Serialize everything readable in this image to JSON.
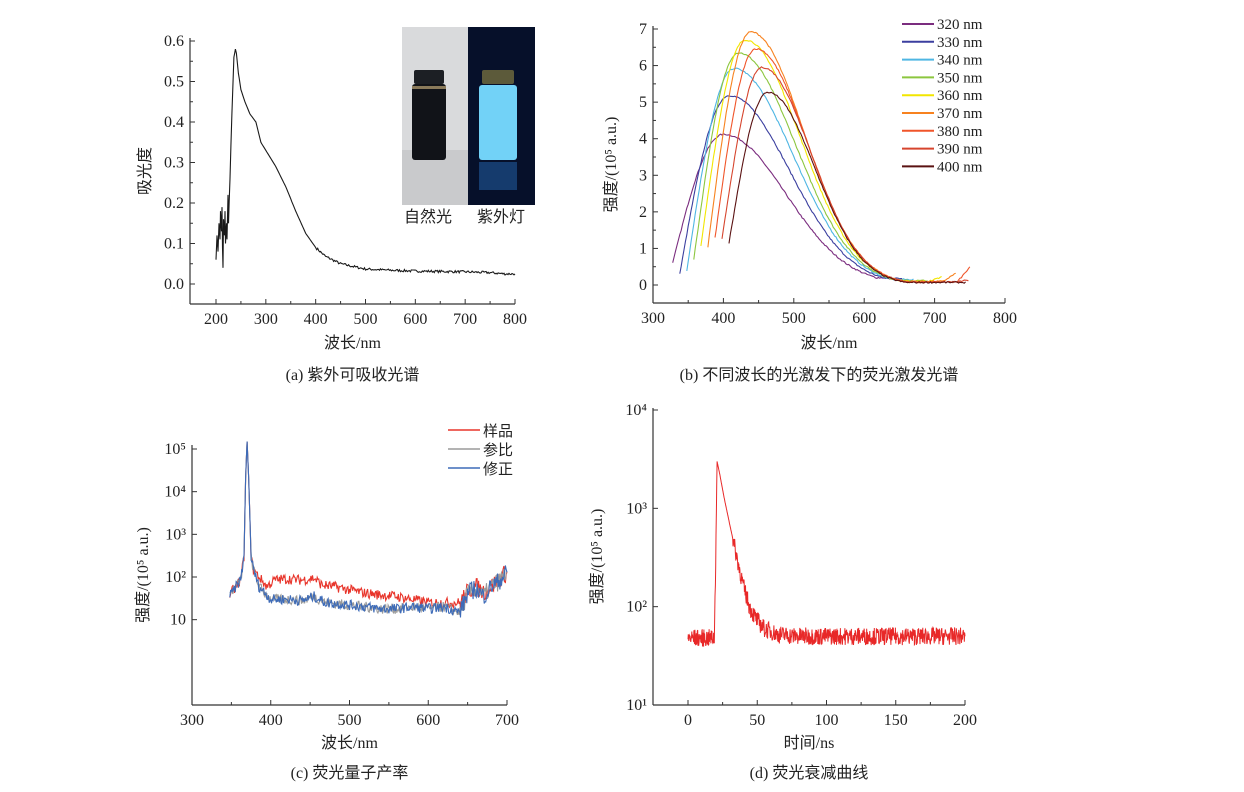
{
  "chart_data": [
    {
      "id": "a",
      "type": "line",
      "caption": "(a) 紫外可吸收光谱",
      "xlabel": "波长/nm",
      "ylabel": "吸光度",
      "xlim": [
        148,
        800
      ],
      "ylim": [
        -0.05,
        0.607
      ],
      "xticks": [
        200,
        300,
        400,
        500,
        600,
        700,
        800
      ],
      "yticks": [
        0.0,
        0.1,
        0.2,
        0.3,
        0.4,
        0.5,
        0.6
      ],
      "ytick_labels": [
        "0.0",
        "0.1",
        "0.2",
        "0.3",
        "0.4",
        "0.5",
        "0.6"
      ],
      "inset_labels": [
        "自然光",
        "紫外灯"
      ],
      "series": [
        {
          "name": "absorbance",
          "color": "#1a1a1a",
          "points": [
            [
              200,
              0.06
            ],
            [
              202,
              0.12
            ],
            [
              204,
              0.08
            ],
            [
              206,
              0.15
            ],
            [
              208,
              0.11
            ],
            [
              209,
              0.18
            ],
            [
              211,
              0.13
            ],
            [
              212,
              0.19
            ],
            [
              213,
              0.09
            ],
            [
              214,
              0.04
            ],
            [
              215,
              0.16
            ],
            [
              217,
              0.12
            ],
            [
              218,
              0.18
            ],
            [
              219,
              0.1
            ],
            [
              221,
              0.15
            ],
            [
              222,
              0.11
            ],
            [
              224,
              0.22
            ],
            [
              225,
              0.15
            ],
            [
              228,
              0.26
            ],
            [
              232,
              0.42
            ],
            [
              236,
              0.56
            ],
            [
              239,
              0.58
            ],
            [
              241,
              0.57
            ],
            [
              245,
              0.52
            ],
            [
              250,
              0.48
            ],
            [
              258,
              0.45
            ],
            [
              268,
              0.42
            ],
            [
              280,
              0.4
            ],
            [
              290,
              0.35
            ],
            [
              300,
              0.33
            ],
            [
              320,
              0.29
            ],
            [
              340,
              0.24
            ],
            [
              360,
              0.18
            ],
            [
              380,
              0.125
            ],
            [
              400,
              0.09
            ],
            [
              420,
              0.068
            ],
            [
              450,
              0.05
            ],
            [
              480,
              0.042
            ],
            [
              500,
              0.037
            ],
            [
              550,
              0.034
            ],
            [
              600,
              0.032
            ],
            [
              650,
              0.031
            ],
            [
              700,
              0.03
            ],
            [
              750,
              0.028
            ],
            [
              780,
              0.025
            ],
            [
              800,
              0.025
            ]
          ]
        }
      ]
    },
    {
      "id": "b",
      "type": "line",
      "caption": "(b) 不同波长的光激发下的荧光激发光谱",
      "xlabel": "波长/nm",
      "ylabel": "强度/(10⁵ a.u.)",
      "xlim": [
        300,
        800
      ],
      "ylim": [
        -0.5,
        7.25
      ],
      "xticks": [
        300,
        400,
        500,
        600,
        700,
        800
      ],
      "yticks": [
        0,
        1,
        2,
        3,
        4,
        5,
        6,
        7
      ],
      "legend_position": "top-right",
      "series": [
        {
          "name": "320 nm",
          "color": "#7b2d7f",
          "start": [
            328,
            0.6
          ],
          "peak": [
            400,
            4.12
          ],
          "end": [
            640,
            0.2
          ],
          "uptick": 0
        },
        {
          "name": "330 nm",
          "color": "#3b3f9f",
          "start": [
            338,
            0.3
          ],
          "peak": [
            408,
            5.18
          ],
          "end": [
            655,
            0.18
          ],
          "uptick": 0
        },
        {
          "name": "340 nm",
          "color": "#4fb6e3",
          "start": [
            348,
            0.4
          ],
          "peak": [
            415,
            5.92
          ],
          "end": [
            670,
            0.15
          ],
          "uptick": 0
        },
        {
          "name": "350 nm",
          "color": "#8cc63f",
          "start": [
            358,
            0.7
          ],
          "peak": [
            421,
            6.35
          ],
          "end": [
            690,
            0.12
          ],
          "uptick": 0
        },
        {
          "name": "360 nm",
          "color": "#f2e600",
          "start": [
            368,
            1.05
          ],
          "peak": [
            431,
            6.7
          ],
          "end": [
            710,
            0.1
          ],
          "uptick": 0.12
        },
        {
          "name": "370 nm",
          "color": "#f7821f",
          "start": [
            378,
            1.05
          ],
          "peak": [
            439,
            6.92
          ],
          "end": [
            730,
            0.1
          ],
          "uptick": 0.22
        },
        {
          "name": "380 nm",
          "color": "#f0552a",
          "start": [
            388,
            1.28
          ],
          "peak": [
            446,
            6.46
          ],
          "end": [
            750,
            0.08
          ],
          "uptick": 0.4
        },
        {
          "name": "390 nm",
          "color": "#d6452e",
          "start": [
            398,
            1.25
          ],
          "peak": [
            455,
            5.95
          ],
          "end": [
            748,
            0.08
          ],
          "uptick": 0.05
        },
        {
          "name": "400 nm",
          "color": "#5a1212",
          "start": [
            408,
            1.15
          ],
          "peak": [
            463,
            5.27
          ],
          "end": [
            745,
            0.07
          ],
          "uptick": 0
        }
      ]
    },
    {
      "id": "c",
      "type": "line",
      "yscale": "log",
      "caption": "(c) 荧光量子产率",
      "xlabel": "波长/nm",
      "ylabel": "强度/(10⁵ a.u.)",
      "xlim": [
        300,
        700
      ],
      "xticks": [
        300,
        400,
        500,
        600,
        700
      ],
      "yticks": [
        1,
        2,
        3,
        4,
        5
      ],
      "ytick_labels": [
        "10",
        "10²",
        "10³",
        "10⁴",
        "10⁵"
      ],
      "legend_position": "top-right",
      "series": [
        {
          "name": "样品",
          "color": "#e8352b",
          "points": [
            [
              348,
              40
            ],
            [
              355,
              55
            ],
            [
              362,
              90
            ],
            [
              366,
              300
            ],
            [
              368,
              20000
            ],
            [
              370,
              150000
            ],
            [
              372,
              20000
            ],
            [
              375,
              300
            ],
            [
              378,
              150
            ],
            [
              385,
              100
            ],
            [
              395,
              60
            ],
            [
              405,
              85
            ],
            [
              420,
              90
            ],
            [
              440,
              85
            ],
            [
              455,
              95
            ],
            [
              465,
              65
            ],
            [
              480,
              60
            ],
            [
              500,
              50
            ],
            [
              520,
              42
            ],
            [
              540,
              38
            ],
            [
              560,
              35
            ],
            [
              580,
              30
            ],
            [
              600,
              25
            ],
            [
              620,
              25
            ],
            [
              640,
              25
            ],
            [
              650,
              45
            ],
            [
              660,
              60
            ],
            [
              670,
              45
            ],
            [
              680,
              60
            ],
            [
              690,
              90
            ],
            [
              700,
              130
            ]
          ]
        },
        {
          "name": "参比",
          "color": "#9a9a9a",
          "points": [
            [
              348,
              40
            ],
            [
              355,
              55
            ],
            [
              362,
              90
            ],
            [
              366,
              300
            ],
            [
              368,
              20000
            ],
            [
              370,
              150000
            ],
            [
              372,
              20000
            ],
            [
              375,
              300
            ],
            [
              378,
              150
            ],
            [
              385,
              60
            ],
            [
              400,
              30
            ],
            [
              420,
              30
            ],
            [
              440,
              28
            ],
            [
              455,
              35
            ],
            [
              470,
              25
            ],
            [
              500,
              22
            ],
            [
              520,
              20
            ],
            [
              540,
              18
            ],
            [
              560,
              18
            ],
            [
              580,
              20
            ],
            [
              600,
              18
            ],
            [
              620,
              20
            ],
            [
              640,
              15
            ],
            [
              650,
              40
            ],
            [
              660,
              55
            ],
            [
              670,
              35
            ],
            [
              680,
              60
            ],
            [
              690,
              80
            ],
            [
              700,
              130
            ]
          ]
        },
        {
          "name": "修正",
          "color": "#3d6bb8",
          "points": [
            [
              348,
              35
            ],
            [
              355,
              55
            ],
            [
              362,
              90
            ],
            [
              366,
              300
            ],
            [
              368,
              20000
            ],
            [
              370,
              150000
            ],
            [
              372,
              20000
            ],
            [
              375,
              300
            ],
            [
              378,
              150
            ],
            [
              385,
              60
            ],
            [
              400,
              30
            ],
            [
              420,
              30
            ],
            [
              440,
              28
            ],
            [
              455,
              35
            ],
            [
              470,
              25
            ],
            [
              500,
              22
            ],
            [
              520,
              20
            ],
            [
              540,
              18
            ],
            [
              560,
              18
            ],
            [
              580,
              20
            ],
            [
              600,
              18
            ],
            [
              620,
              20
            ],
            [
              640,
              15
            ],
            [
              650,
              40
            ],
            [
              660,
              55
            ],
            [
              670,
              35
            ],
            [
              680,
              60
            ],
            [
              690,
              80
            ],
            [
              700,
              130
            ]
          ]
        }
      ]
    },
    {
      "id": "d",
      "type": "line",
      "yscale": "log",
      "caption": "(d) 荧光衰减曲线",
      "xlabel": "时间/ns",
      "ylabel": "强度/(10⁵ a.u.)",
      "xlim": [
        -25,
        200
      ],
      "xticks": [
        0,
        50,
        100,
        150,
        200
      ],
      "yticks": [
        1,
        2,
        3,
        4
      ],
      "ytick_labels": [
        "10¹",
        "10²",
        "10³",
        "10⁴"
      ],
      "series": [
        {
          "name": "decay",
          "color": "#e82828",
          "points": [
            [
              0,
              48
            ],
            [
              10,
              48
            ],
            [
              19,
              48
            ],
            [
              20,
              300
            ],
            [
              21,
              3000
            ],
            [
              23,
              2200
            ],
            [
              26,
              1300
            ],
            [
              30,
              700
            ],
            [
              35,
              330
            ],
            [
              40,
              160
            ],
            [
              45,
              95
            ],
            [
              50,
              72
            ],
            [
              55,
              60
            ],
            [
              65,
              52
            ],
            [
              80,
              50
            ],
            [
              120,
              50
            ],
            [
              160,
              50
            ],
            [
              200,
              50
            ]
          ]
        }
      ]
    }
  ]
}
